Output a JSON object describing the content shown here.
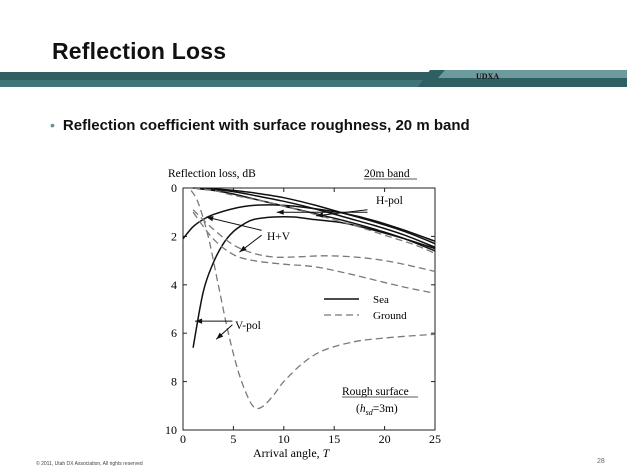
{
  "slide": {
    "title": "Reflection Loss",
    "brand": "UDXA",
    "bullet": "Reflection coefficient with surface roughness, 20 m band",
    "footer": "© 2011, Utah DX Association,  All rights reserved",
    "page_number": "28"
  },
  "colors": {
    "bar_dark": "#2d5f63",
    "bar_light": "#3f7478",
    "bullet": "#5f9296"
  },
  "chart_data": {
    "type": "line",
    "ylabel": "Reflection loss, dB",
    "xlabel_main": "Arrival angle, ",
    "xlabel_var": "T",
    "band_label": "20m band",
    "xlim": [
      0,
      25
    ],
    "ylim": [
      0,
      10
    ],
    "y_inverted": true,
    "x_ticks": [
      "0",
      "5",
      "10",
      "15",
      "20",
      "25"
    ],
    "y_ticks": [
      "0",
      "2",
      "4",
      "6",
      "8",
      "10"
    ],
    "legend": [
      {
        "label": "Sea",
        "style": "solid"
      },
      {
        "label": "Ground",
        "style": "dashed"
      }
    ],
    "annotations": {
      "hpol": "H-pol",
      "hv": "H+V",
      "vpol": "V-pol",
      "rough_title": "Rough surface",
      "rough_open": "(",
      "rough_h": "h",
      "rough_sub": "sd",
      "rough_close": "=3m)"
    },
    "series": [
      {
        "style": "solid",
        "x": [
          1,
          3,
          5,
          7,
          10,
          13,
          16,
          19,
          22,
          25
        ],
        "y": [
          0,
          0.03,
          0.1,
          0.2,
          0.4,
          0.7,
          1.05,
          1.4,
          1.8,
          2.3
        ]
      },
      {
        "style": "solid",
        "x": [
          1,
          3,
          5,
          7,
          10,
          13,
          16,
          19,
          22,
          25
        ],
        "y": [
          0,
          0.05,
          0.15,
          0.3,
          0.55,
          0.85,
          1.2,
          1.55,
          1.95,
          2.45
        ]
      },
      {
        "style": "solid",
        "x": [
          1,
          3,
          5,
          7,
          10,
          13,
          16,
          19,
          22,
          25
        ],
        "y": [
          0,
          0.1,
          0.25,
          0.45,
          0.75,
          1.05,
          1.35,
          1.7,
          2.1,
          2.6
        ]
      },
      {
        "style": "solid",
        "x": [
          0,
          1,
          2,
          3,
          5,
          7,
          9,
          11,
          13,
          16,
          19,
          22,
          25
        ],
        "y": [
          2.1,
          1.6,
          1.3,
          1.1,
          0.85,
          0.72,
          0.7,
          0.75,
          0.85,
          1.05,
          1.35,
          1.75,
          2.2
        ]
      },
      {
        "style": "solid",
        "x": [
          1,
          2,
          3,
          4,
          5,
          6,
          7,
          9,
          11,
          13,
          16,
          19,
          22,
          25
        ],
        "y": [
          6.6,
          4.3,
          3.1,
          2.3,
          1.8,
          1.5,
          1.3,
          1.2,
          1.2,
          1.3,
          1.45,
          1.75,
          2.1,
          2.5
        ]
      },
      {
        "style": "dashed",
        "x": [
          1,
          3,
          5,
          8,
          11,
          14,
          17,
          20,
          23,
          25
        ],
        "y": [
          0,
          0.1,
          0.3,
          0.55,
          0.85,
          1.2,
          1.55,
          1.95,
          2.35,
          2.7
        ]
      },
      {
        "style": "dashed",
        "x": [
          1,
          3,
          5,
          7,
          9,
          11,
          14,
          17,
          20,
          23,
          25
        ],
        "y": [
          0.9,
          1.7,
          2.35,
          2.7,
          2.85,
          2.85,
          2.8,
          2.85,
          3.0,
          3.25,
          3.45
        ]
      },
      {
        "style": "dashed",
        "x": [
          1,
          3,
          5,
          7,
          10,
          13,
          16,
          19,
          22,
          25
        ],
        "y": [
          1.0,
          2.1,
          2.75,
          3.0,
          3.15,
          3.25,
          3.5,
          3.8,
          4.1,
          4.35
        ]
      },
      {
        "style": "dashed",
        "x": [
          0.8,
          1.5,
          2.5,
          3.5,
          4.5,
          5.5,
          6.5,
          7.2,
          8,
          9,
          10,
          12,
          14,
          17,
          20,
          23,
          25
        ],
        "y": [
          0.1,
          0.6,
          2.0,
          4.0,
          6.0,
          7.6,
          8.7,
          9.1,
          9.0,
          8.55,
          8.0,
          7.2,
          6.7,
          6.35,
          6.2,
          6.1,
          6.05
        ]
      }
    ]
  }
}
